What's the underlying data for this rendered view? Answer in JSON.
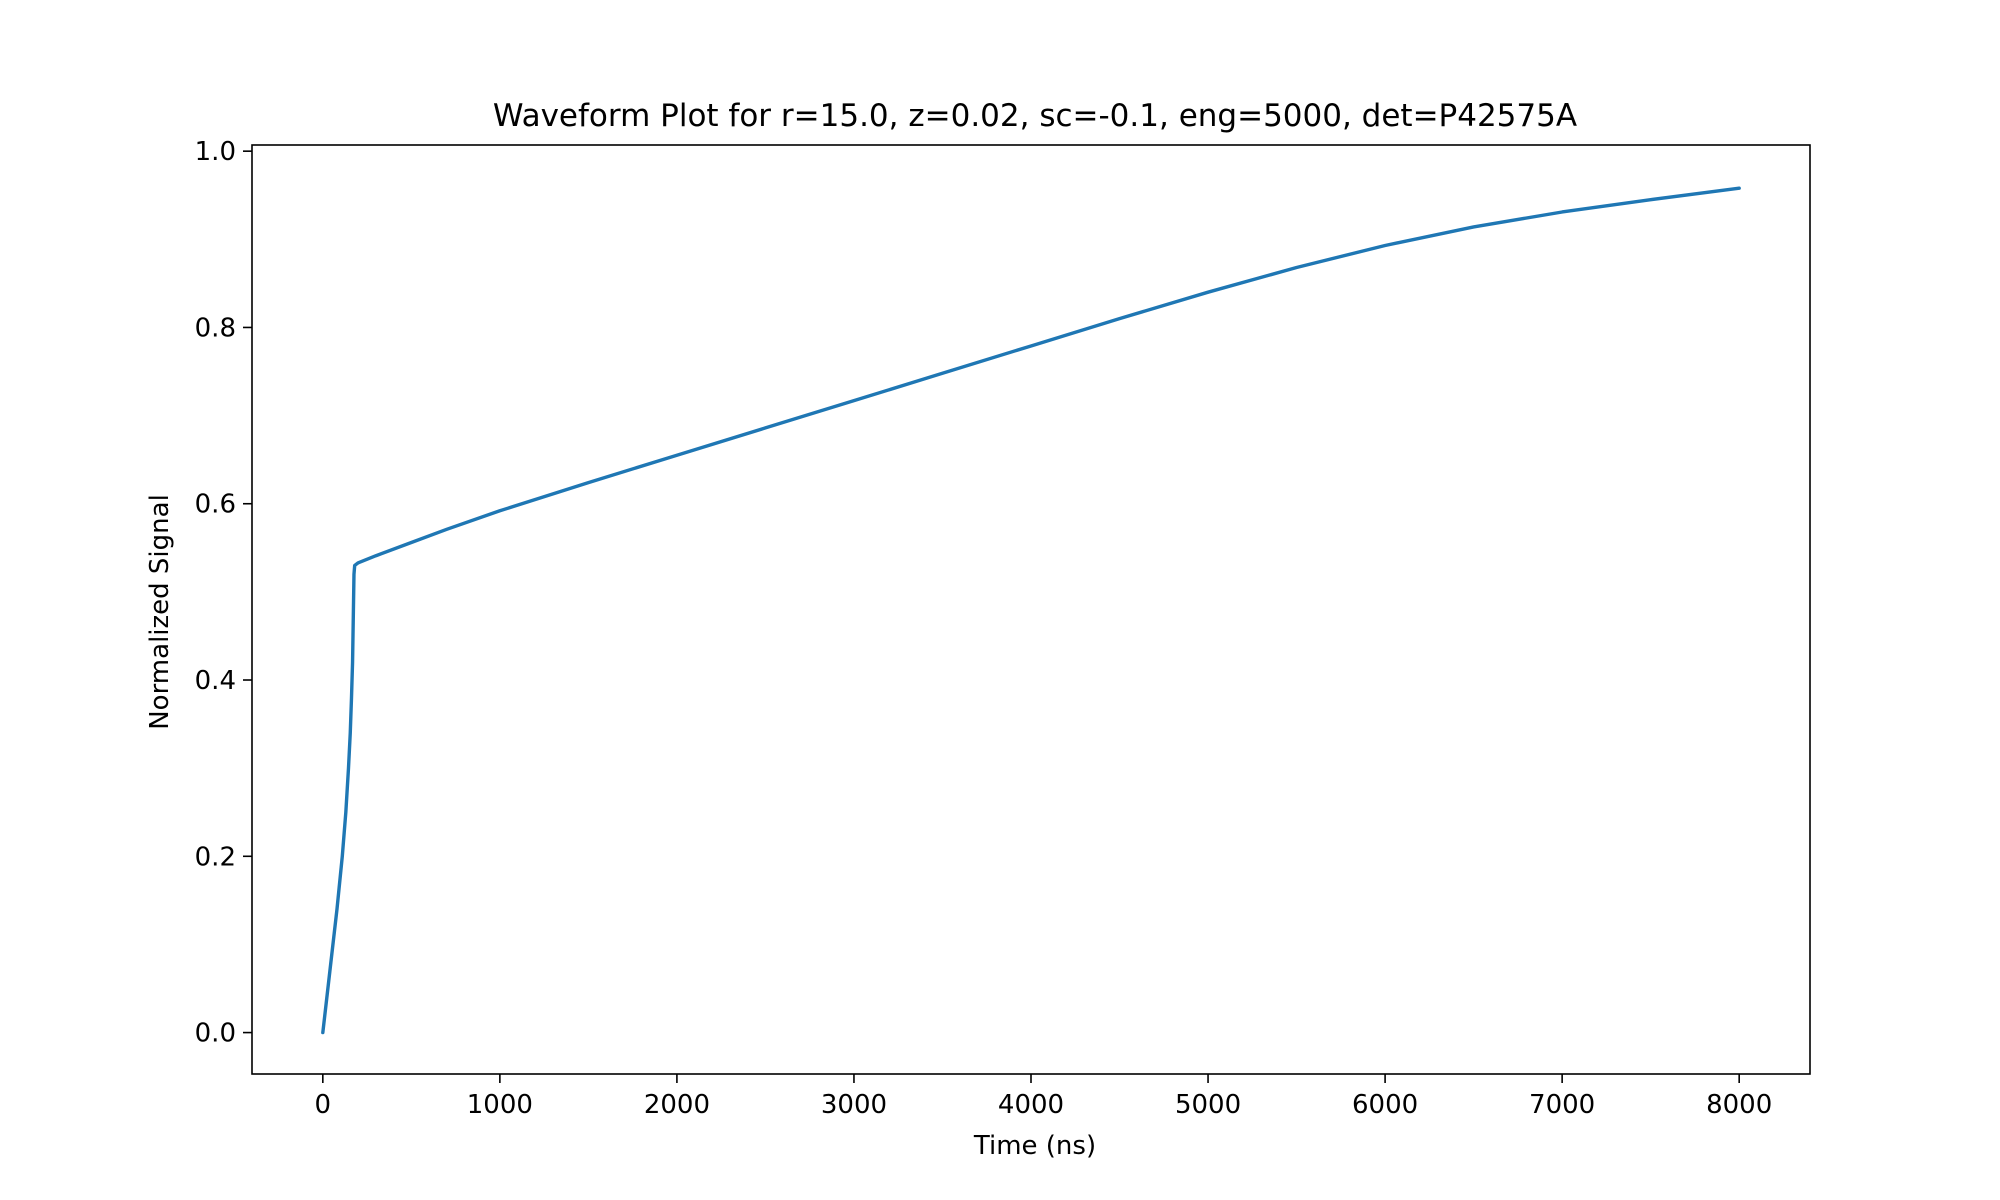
{
  "chart_data": {
    "type": "line",
    "title": "Waveform Plot for r=15.0, z=0.02, sc=-0.1, eng=5000, det=P42575A",
    "xlabel": "Time (ns)",
    "ylabel": "Normalized Signal",
    "xlim": [
      -400,
      8400
    ],
    "ylim": [
      -0.047,
      1.007
    ],
    "xticks": [
      0,
      1000,
      2000,
      3000,
      4000,
      5000,
      6000,
      7000,
      8000
    ],
    "yticks": [
      0.0,
      0.2,
      0.4,
      0.6,
      0.8,
      1.0
    ],
    "xtick_labels": [
      "0",
      "1000",
      "2000",
      "3000",
      "4000",
      "5000",
      "6000",
      "7000",
      "8000"
    ],
    "ytick_labels": [
      "0.0",
      "0.2",
      "0.4",
      "0.6",
      "0.8",
      "1.0"
    ],
    "grid": false,
    "line_color": "#1f77b4",
    "series": [
      {
        "x": [
          0,
          40,
          80,
          110,
          130,
          145,
          155,
          162,
          168,
          172,
          176,
          180,
          200,
          300,
          500,
          700,
          1000,
          1500,
          2000,
          2500,
          3000,
          3500,
          4000,
          4500,
          5000,
          5500,
          6000,
          6500,
          7000,
          7500,
          8000
        ],
        "y": [
          0.0,
          0.07,
          0.14,
          0.2,
          0.25,
          0.3,
          0.34,
          0.38,
          0.42,
          0.47,
          0.52,
          0.53,
          0.533,
          0.541,
          0.556,
          0.571,
          0.592,
          0.624,
          0.655,
          0.686,
          0.717,
          0.748,
          0.779,
          0.81,
          0.84,
          0.868,
          0.893,
          0.914,
          0.931,
          0.945,
          0.958
        ]
      }
    ]
  }
}
